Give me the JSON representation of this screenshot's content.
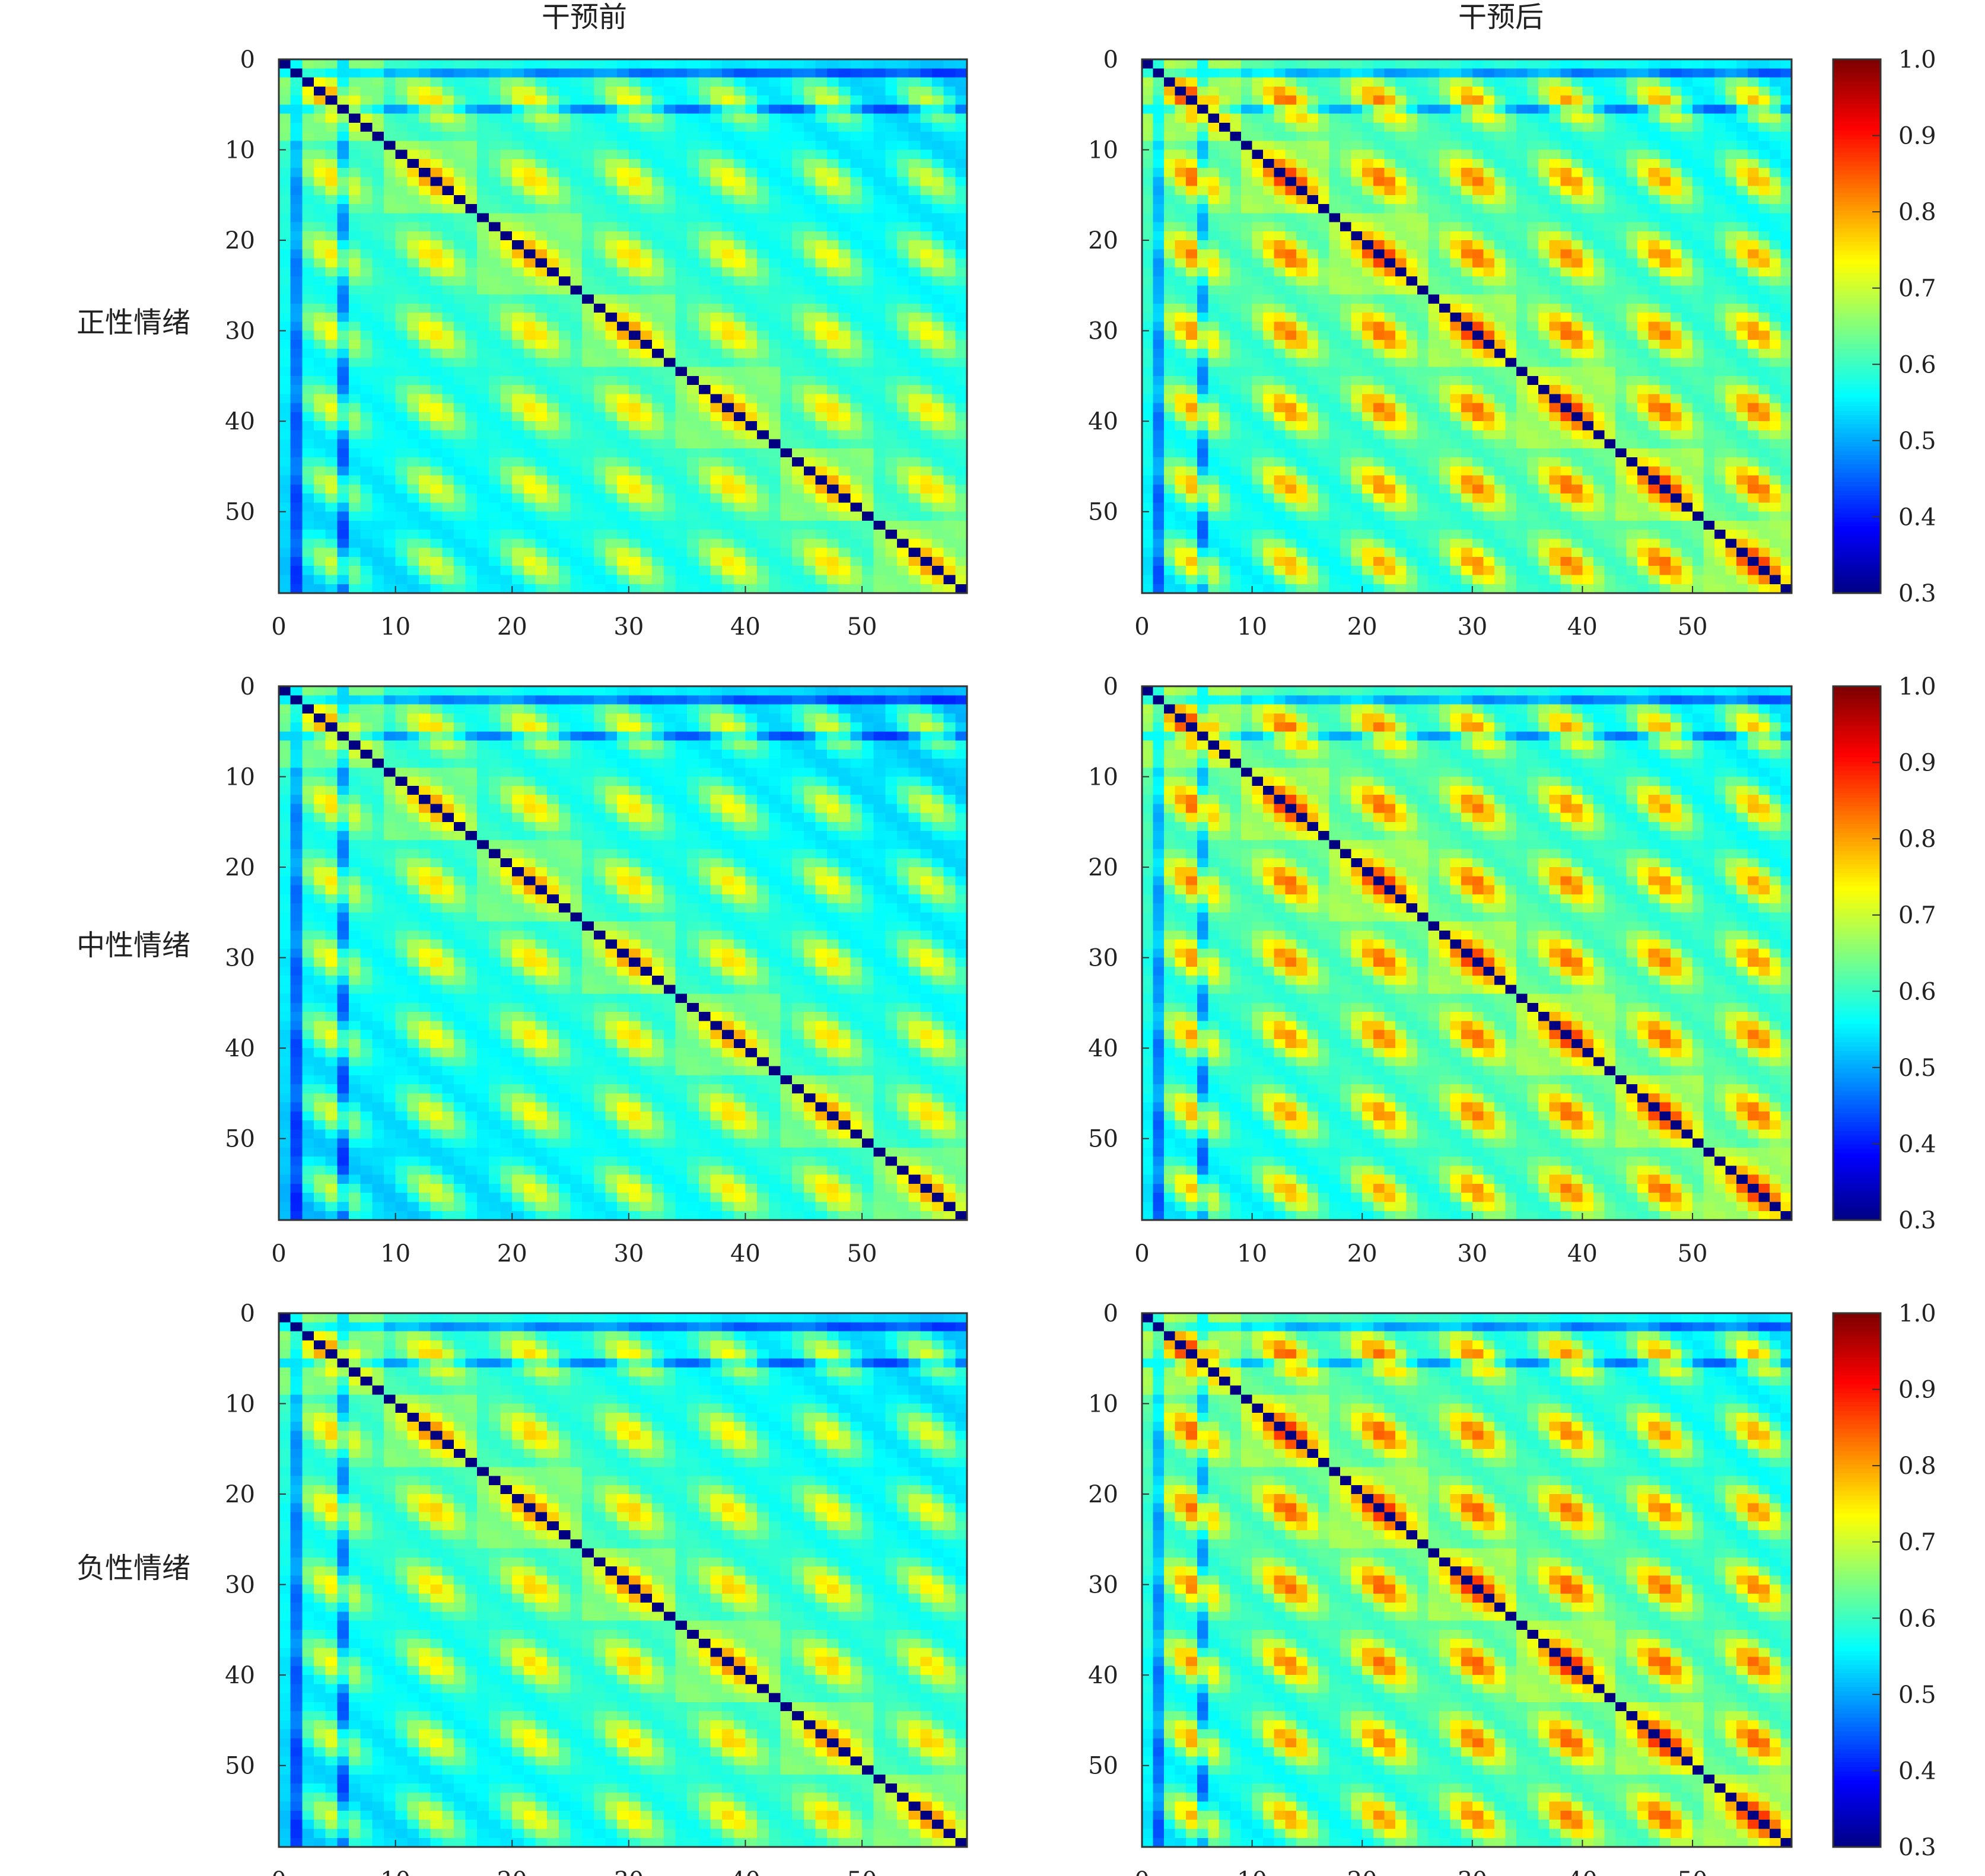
{
  "figure": {
    "column_titles": [
      "干预前",
      "干预后"
    ],
    "row_labels": [
      "正性情绪",
      "中性情绪",
      "负性情绪"
    ]
  },
  "chart_data": {
    "type": "heatmap",
    "matrix_size": 59,
    "x_ticks": [
      0,
      10,
      20,
      30,
      40,
      50
    ],
    "y_ticks": [
      0,
      10,
      20,
      30,
      40,
      50
    ],
    "colorbar": {
      "colormap": "jet",
      "range": [
        0.3,
        1.0
      ],
      "ticks": [
        "1.0",
        "0.9",
        "0.8",
        "0.7",
        "0.6",
        "0.5",
        "0.4",
        "0.3"
      ]
    },
    "panels": [
      {
        "row": "正性情绪",
        "column": "干预前",
        "dark_mark": 30,
        "mean_offdiag": 0.6,
        "block_similarity": 0.78
      },
      {
        "row": "正性情绪",
        "column": "干预后",
        "dark_mark": 30,
        "mean_offdiag": 0.62,
        "block_similarity": 0.86
      },
      {
        "row": "中性情绪",
        "column": "干预前",
        "dark_mark": 30,
        "mean_offdiag": 0.59,
        "block_similarity": 0.78
      },
      {
        "row": "中性情绪",
        "column": "干预后",
        "dark_mark": 30,
        "mean_offdiag": 0.62,
        "block_similarity": 0.86
      },
      {
        "row": "负性情绪",
        "column": "干预前",
        "dark_mark": 30,
        "mean_offdiag": 0.6,
        "block_similarity": 0.79
      },
      {
        "row": "负性情绪",
        "column": "干预后",
        "dark_mark": 30,
        "mean_offdiag": 0.62,
        "block_similarity": 0.87
      }
    ]
  }
}
